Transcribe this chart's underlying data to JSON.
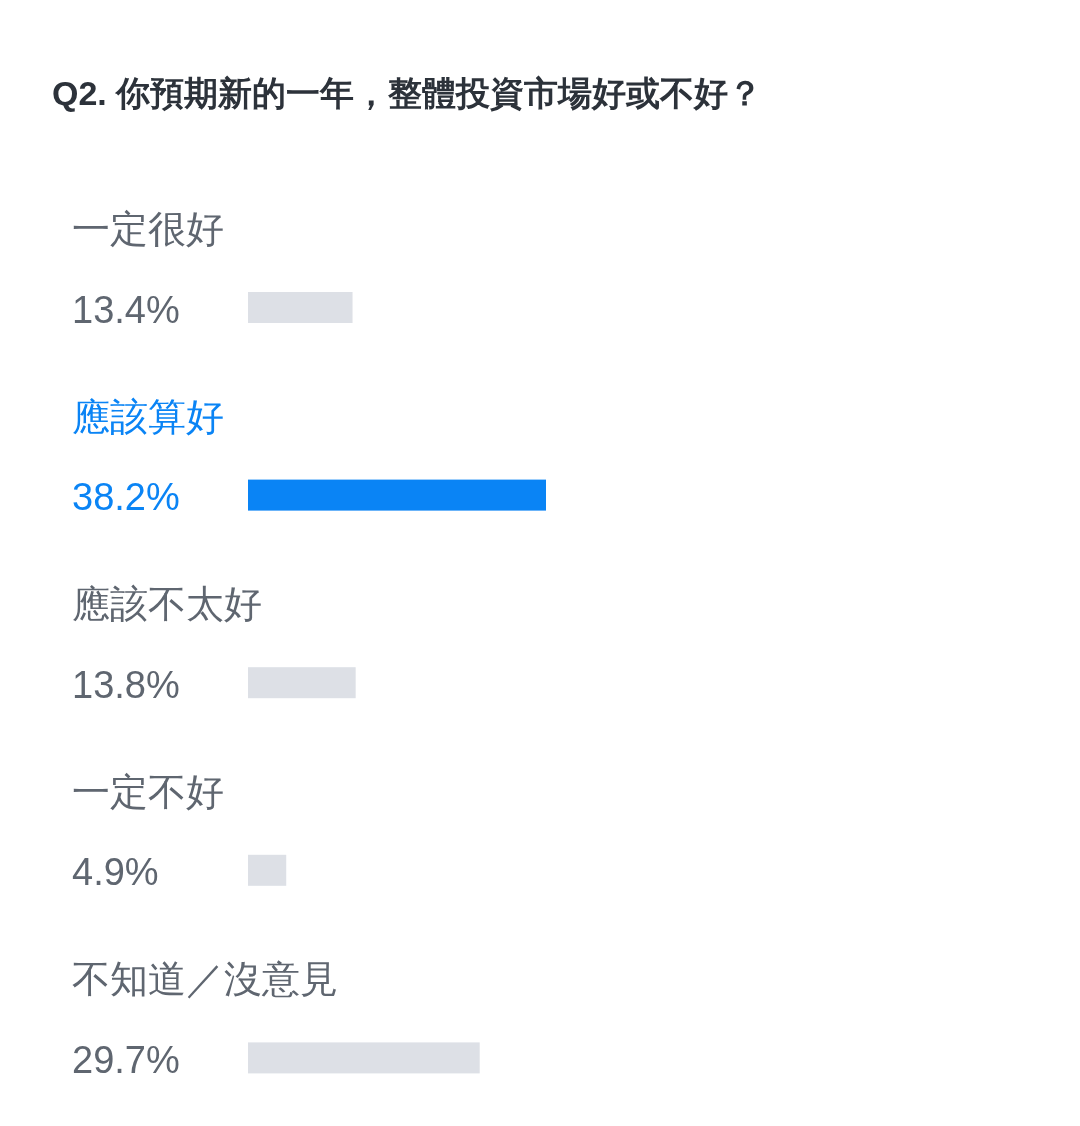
{
  "chart_data": {
    "type": "bar",
    "orientation": "horizontal",
    "title": "Q2. 你預期新的一年，整體投資市場好或不好？",
    "categories": [
      "一定很好",
      "應該算好",
      "應該不太好",
      "一定不好",
      "不知道／沒意見"
    ],
    "values": [
      13.4,
      38.2,
      13.8,
      4.9,
      29.7
    ],
    "value_labels": [
      "13.4%",
      "38.2%",
      "13.8%",
      "4.9%",
      "29.7%"
    ],
    "colors": [
      "#dde0e6",
      "#0a84f5",
      "#dde0e6",
      "#dde0e6",
      "#dde0e6"
    ]
  }
}
